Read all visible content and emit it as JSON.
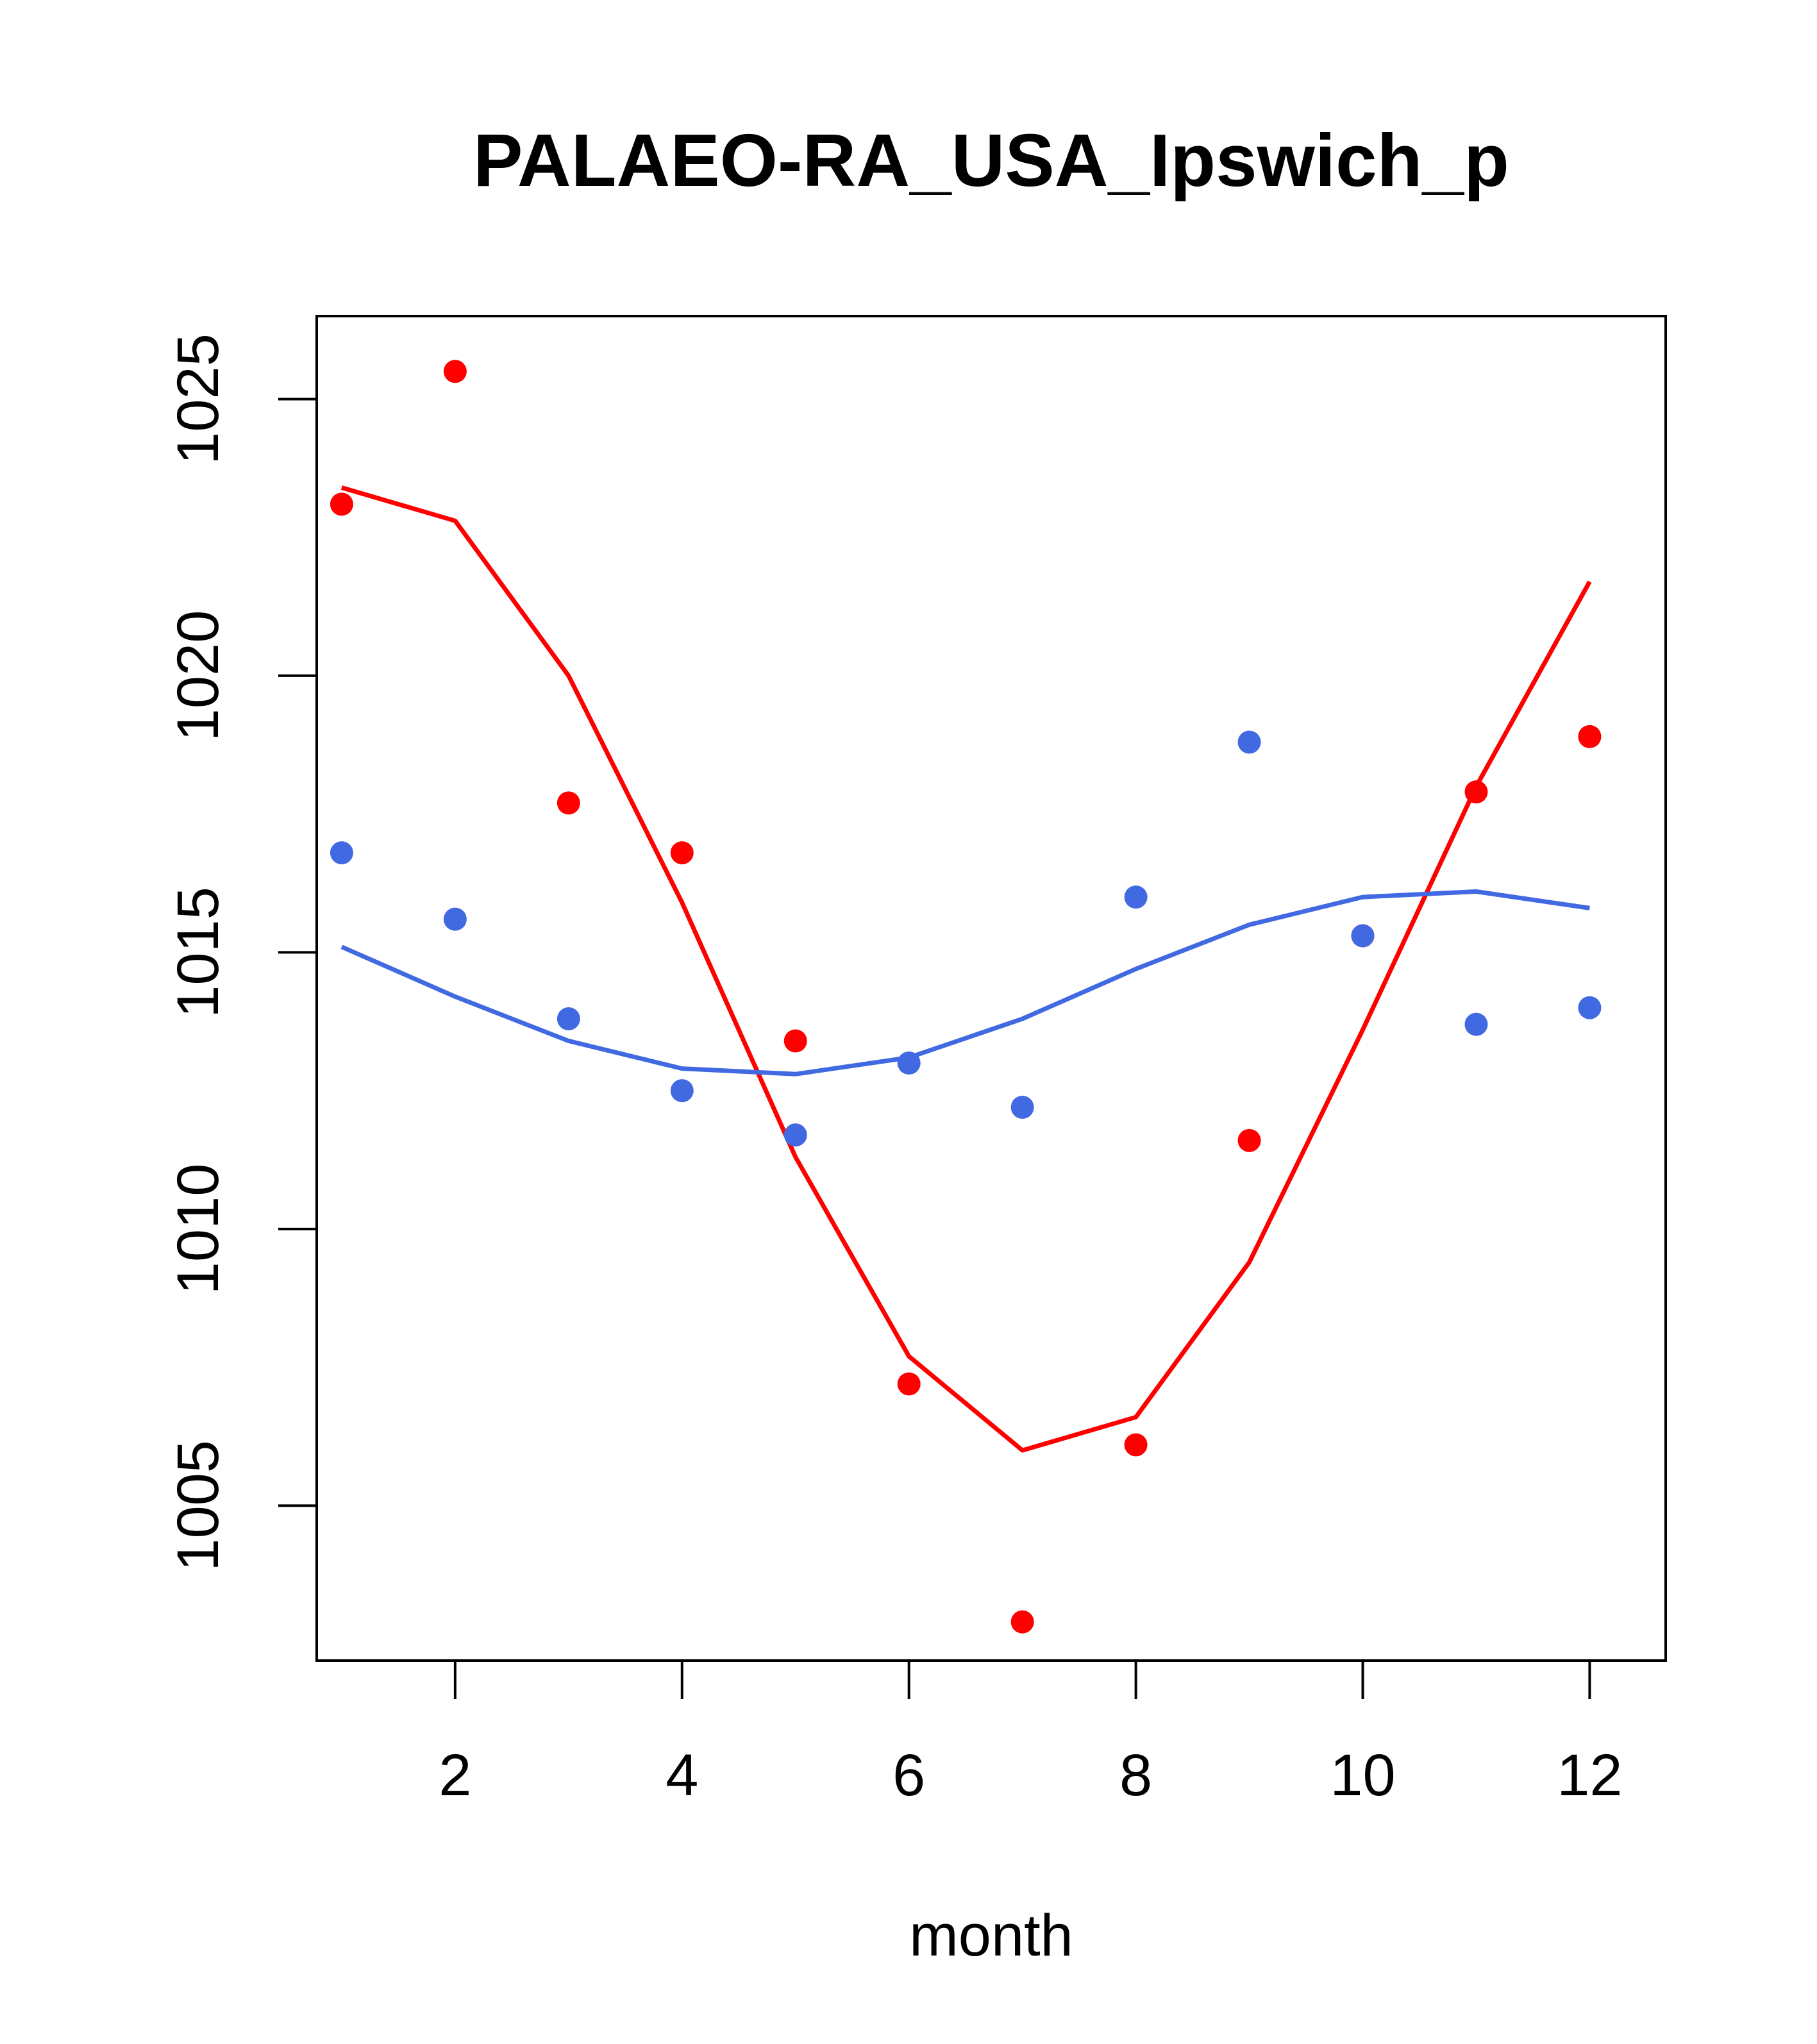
{
  "chart_data": {
    "type": "scatter",
    "title": "PALAEO-RA_USA_Ipswich_p",
    "xlabel": "month",
    "ylabel": "",
    "xlim": [
      0.78,
      12.67
    ],
    "ylim": [
      1002.2,
      1026.5
    ],
    "x_ticks": [
      2,
      4,
      6,
      8,
      10,
      12
    ],
    "y_ticks": [
      1005,
      1010,
      1015,
      1020,
      1025
    ],
    "grid": false,
    "legend": "none",
    "series": [
      {
        "color": "#FF0000",
        "x": [
          1,
          2,
          3,
          4,
          5,
          6,
          7,
          8,
          9,
          10,
          11,
          12
        ],
        "points": [
          1023.1,
          1025.5,
          1017.7,
          1016.8,
          1013.4,
          1007.2,
          1002.9,
          1006.1,
          1011.6,
          1015.3,
          1017.9,
          1018.9
        ],
        "line": [
          1023.4,
          1022.8,
          1020.0,
          1015.9,
          1011.3,
          1007.7,
          1006.0,
          1006.6,
          1009.4,
          1013.6,
          1018.0,
          1021.7
        ]
      },
      {
        "color": "#4169E1",
        "x": [
          1,
          2,
          3,
          4,
          5,
          6,
          7,
          8,
          9,
          10,
          11,
          12
        ],
        "points": [
          1016.8,
          1015.6,
          1013.8,
          1012.5,
          1011.7,
          1013.0,
          1012.2,
          1016.0,
          1018.8,
          1015.3,
          1013.7,
          1014.0
        ],
        "line": [
          1015.1,
          1014.2,
          1013.4,
          1012.9,
          1012.8,
          1013.1,
          1013.8,
          1014.7,
          1015.5,
          1016.0,
          1016.1,
          1015.8
        ]
      }
    ]
  }
}
